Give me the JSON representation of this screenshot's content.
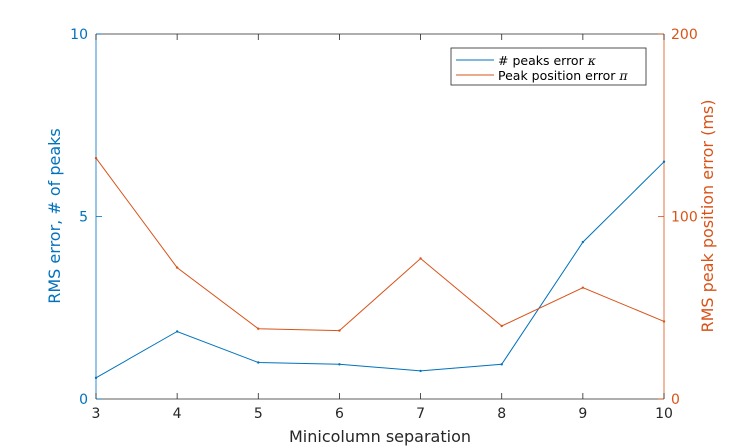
{
  "chart_data": {
    "type": "line",
    "title": "",
    "xlabel": "Minicolumn separation",
    "ylabel_left": "RMS error, # of peaks",
    "ylabel_right": "RMS peak position error (ms)",
    "x": [
      3,
      4,
      5,
      6,
      7,
      8,
      9,
      10
    ],
    "xlim": [
      3,
      10
    ],
    "xticks": [
      3,
      4,
      5,
      6,
      7,
      8,
      9,
      10
    ],
    "ylim_left": [
      0,
      10
    ],
    "yticks_left": [
      0,
      5,
      10
    ],
    "ylim_right": [
      0,
      200
    ],
    "yticks_right": [
      0,
      100,
      200
    ],
    "grid": false,
    "legend_position": "top-right",
    "series": [
      {
        "name": "# peaks error",
        "symbol": "κ",
        "axis": "left",
        "color": "#0072bd",
        "values": [
          0.58,
          1.85,
          1.0,
          0.95,
          0.77,
          0.95,
          4.3,
          6.5
        ]
      },
      {
        "name": "Peak position error",
        "symbol": "π",
        "axis": "right",
        "color": "#d95319",
        "values": [
          132,
          72,
          38.5,
          37.5,
          77,
          40,
          61,
          42.5
        ]
      }
    ]
  }
}
